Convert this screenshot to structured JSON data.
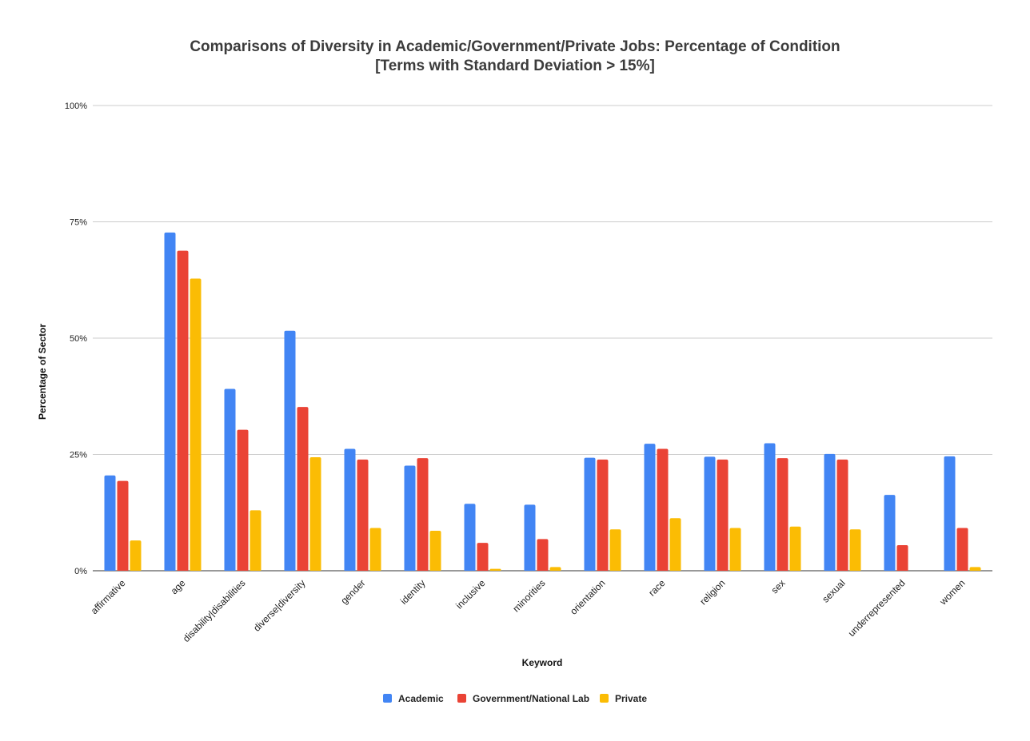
{
  "colors": {
    "academic": "#4285F4",
    "government": "#EA4335",
    "private": "#FBBC04",
    "grid": "#cccccc",
    "title": "#3c3c3c"
  },
  "chart_data": {
    "type": "bar",
    "title": "Comparisons of Diversity in Academic/Government/Private Jobs: Percentage of Condition",
    "subtitle": "[Terms with Standard Deviation > 15%]",
    "xlabel": "Keyword",
    "ylabel": "Percentage of Sector",
    "ylim": [
      0,
      100
    ],
    "yticks": [
      {
        "value": 0,
        "label": "0%"
      },
      {
        "value": 25,
        "label": "25%"
      },
      {
        "value": 50,
        "label": "50%"
      },
      {
        "value": 75,
        "label": "75%"
      },
      {
        "value": 100,
        "label": "100%"
      }
    ],
    "grid": true,
    "legend_position": "bottom",
    "categories": [
      "affirmative",
      "age",
      "disability|disabilities",
      "diverse|diversity",
      "gender",
      "identity",
      "inclusive",
      "minorities",
      "orientation",
      "race",
      "religion",
      "sex",
      "sexual",
      "underrepresented",
      "women"
    ],
    "series": [
      {
        "name": "Academic",
        "color": "#4285F4",
        "values": [
          20.5,
          72.7,
          39.1,
          51.6,
          26.2,
          22.6,
          14.4,
          14.2,
          24.3,
          27.3,
          24.5,
          27.4,
          25.1,
          16.3,
          24.6
        ]
      },
      {
        "name": "Government/National Lab",
        "color": "#EA4335",
        "values": [
          19.3,
          68.8,
          30.3,
          35.2,
          23.9,
          24.2,
          6.0,
          6.8,
          23.9,
          26.2,
          23.9,
          24.2,
          23.9,
          5.5,
          9.2
        ]
      },
      {
        "name": "Private",
        "color": "#FBBC04",
        "values": [
          6.5,
          62.8,
          13.0,
          24.4,
          9.2,
          8.6,
          0.4,
          0.8,
          8.9,
          11.3,
          9.2,
          9.5,
          8.9,
          0.0,
          0.8
        ]
      }
    ]
  }
}
